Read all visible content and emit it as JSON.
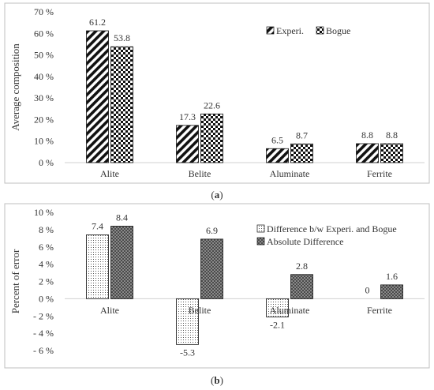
{
  "figure": {
    "caption_a": "(a)",
    "caption_a_letter": "a",
    "caption_b": "(b)",
    "caption_b_letter": "b"
  },
  "chart_data": [
    {
      "type": "bar",
      "id": "a",
      "categories": [
        "Alite",
        "Belite",
        "Aluminate",
        "Ferrite"
      ],
      "series": [
        {
          "name": "Experi.",
          "values": [
            61.2,
            17.3,
            6.5,
            8.8
          ],
          "pattern": "diagonal-stripes",
          "labels": [
            "61.2",
            "17.3",
            "6.5",
            "8.8"
          ]
        },
        {
          "name": "Bogue",
          "values": [
            53.8,
            22.6,
            8.7,
            8.8
          ],
          "pattern": "checkerboard",
          "labels": [
            "53.8",
            "22.6",
            "8.7",
            "8.8"
          ]
        }
      ],
      "ylabel": "Average composition",
      "ylim": [
        0,
        70
      ],
      "yticks": [
        0,
        10,
        20,
        30,
        40,
        50,
        60,
        70
      ],
      "ytick_labels": [
        "0 %",
        "10 %",
        "20 %",
        "30 %",
        "40 %",
        "50 %",
        "60 %",
        "70 %"
      ],
      "grid": false,
      "legend_position": "top-right"
    },
    {
      "type": "bar",
      "id": "b",
      "categories": [
        "Alite",
        "Belite",
        "Aluminate",
        "Ferrite"
      ],
      "series": [
        {
          "name": "Difference b/w Experi. and Bogue",
          "values": [
            7.4,
            -5.3,
            -2.1,
            0
          ],
          "pattern": "dots",
          "labels": [
            "7.4",
            "-5.3",
            "-2.1",
            "0"
          ]
        },
        {
          "name": "Absolute Difference",
          "values": [
            8.4,
            6.9,
            2.8,
            1.6
          ],
          "pattern": "crosshatch",
          "labels": [
            "8.4",
            "6.9",
            "2.8",
            "1.6"
          ]
        }
      ],
      "ylabel": "Percent of error",
      "ylim": [
        -6,
        10
      ],
      "yticks": [
        -6,
        -4,
        -2,
        0,
        2,
        4,
        6,
        8,
        10
      ],
      "ytick_labels": [
        "- 6 %",
        "- 4 %",
        "- 2 %",
        "0 %",
        "2 %",
        "4 %",
        "6 %",
        "8 %",
        "10 %"
      ],
      "grid": false,
      "legend_position": "top-right"
    }
  ]
}
